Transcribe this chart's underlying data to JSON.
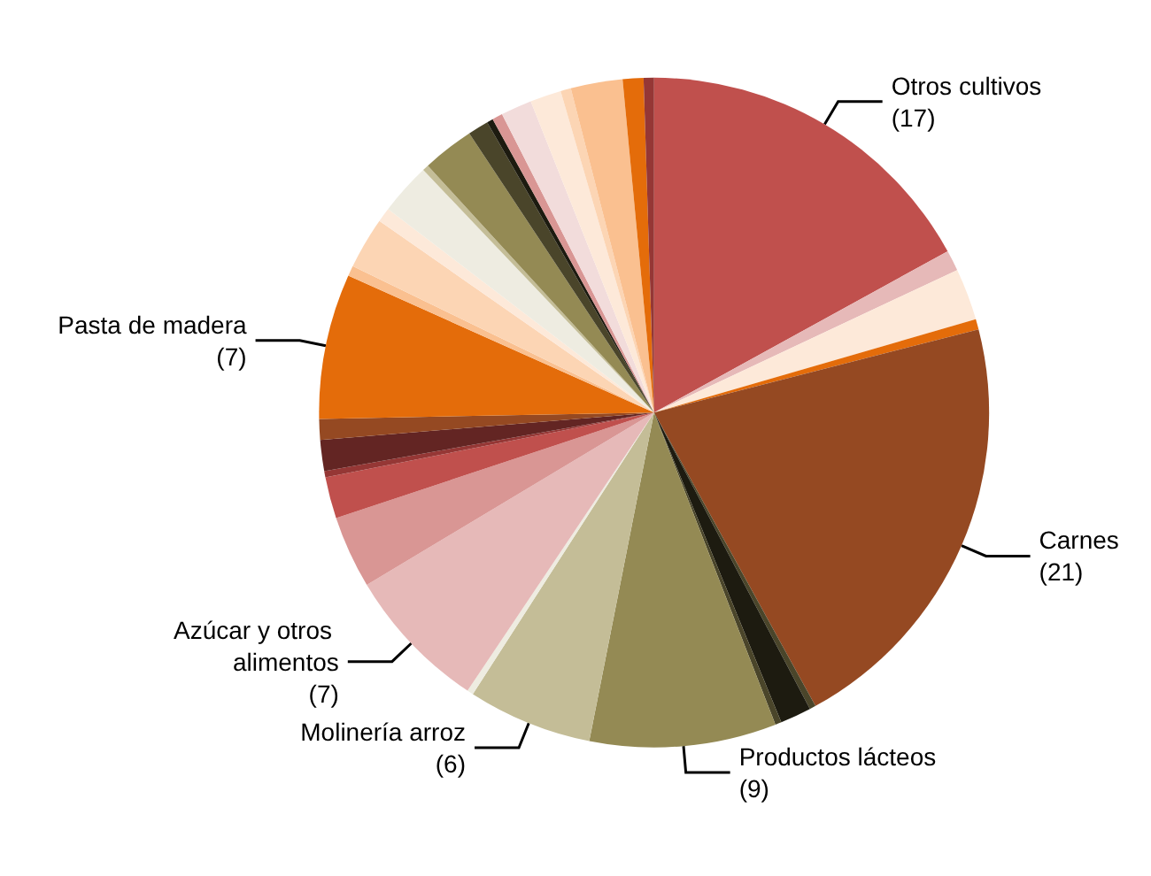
{
  "chart_data": {
    "type": "pie",
    "categories": [
      "Otros cultivos",
      null,
      null,
      null,
      "Carnes",
      null,
      null,
      null,
      "Productos lácteos",
      "Molinería arroz",
      null,
      "Azúcar y otros alimentos",
      null,
      null,
      null,
      null,
      null,
      "Pasta de madera",
      null,
      null,
      null,
      null,
      null,
      null,
      null,
      null,
      null,
      null,
      null,
      null,
      null,
      null,
      null
    ],
    "values": [
      17,
      1,
      2.5,
      0.5,
      21,
      0.3,
      1.5,
      0.3,
      9,
      6,
      0.3,
      7,
      3.5,
      2,
      0.3,
      1.5,
      1,
      7,
      0.5,
      2.5,
      0.7,
      2.5,
      0.3,
      2.5,
      1,
      0.3,
      0.5,
      1.5,
      1.5,
      0.5,
      2.5,
      1,
      0.5
    ],
    "colors": [
      "#c0504d",
      "#e6b9b8",
      "#fde9d9",
      "#e46c0a",
      "#954922",
      "#4a452a",
      "#1d1b10",
      "#4a452a",
      "#948a54",
      "#c4bd97",
      "#eeece1",
      "#e6b9b8",
      "#d99694",
      "#c0504d",
      "#953735",
      "#632523",
      "#954922",
      "#e46c0a",
      "#fac090",
      "#fcd5b4",
      "#fde9d9",
      "#eeece1",
      "#c4bd97",
      "#948a54",
      "#4a452a",
      "#1d1b10",
      "#d99694",
      "#f2dcdb",
      "#fde9d9",
      "#fcd5b4",
      "#fac090",
      "#e46c0a",
      "#953735"
    ],
    "value_labels": [
      "(17)",
      null,
      null,
      null,
      "(21)",
      null,
      null,
      null,
      "(9)",
      "(6)",
      null,
      "(7)",
      null,
      null,
      null,
      null,
      null,
      "(7)",
      null,
      null,
      null,
      null,
      null,
      null,
      null,
      null,
      null,
      null,
      null,
      null,
      null,
      null,
      null
    ]
  }
}
